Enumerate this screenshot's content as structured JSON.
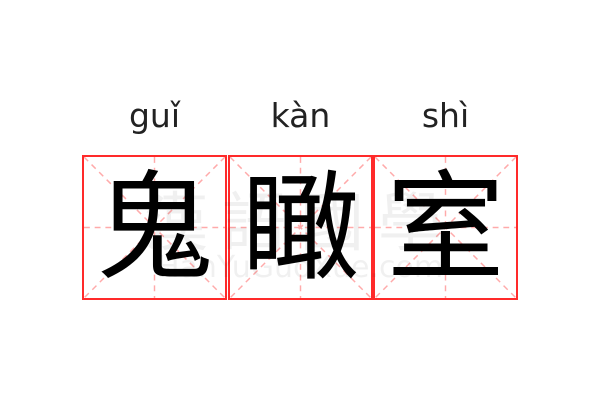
{
  "word": [
    {
      "pinyin": "guǐ",
      "char": "鬼"
    },
    {
      "pinyin": "kàn",
      "char": "瞰"
    },
    {
      "pinyin": "shì",
      "char": "室"
    }
  ],
  "watermark": {
    "chinese": "漢語國學",
    "latin": "HanYuGuoXue.com"
  },
  "colors": {
    "grid_border": "#ff2a2a",
    "guide_lines": "#ffaaaa",
    "text": "#000000"
  }
}
